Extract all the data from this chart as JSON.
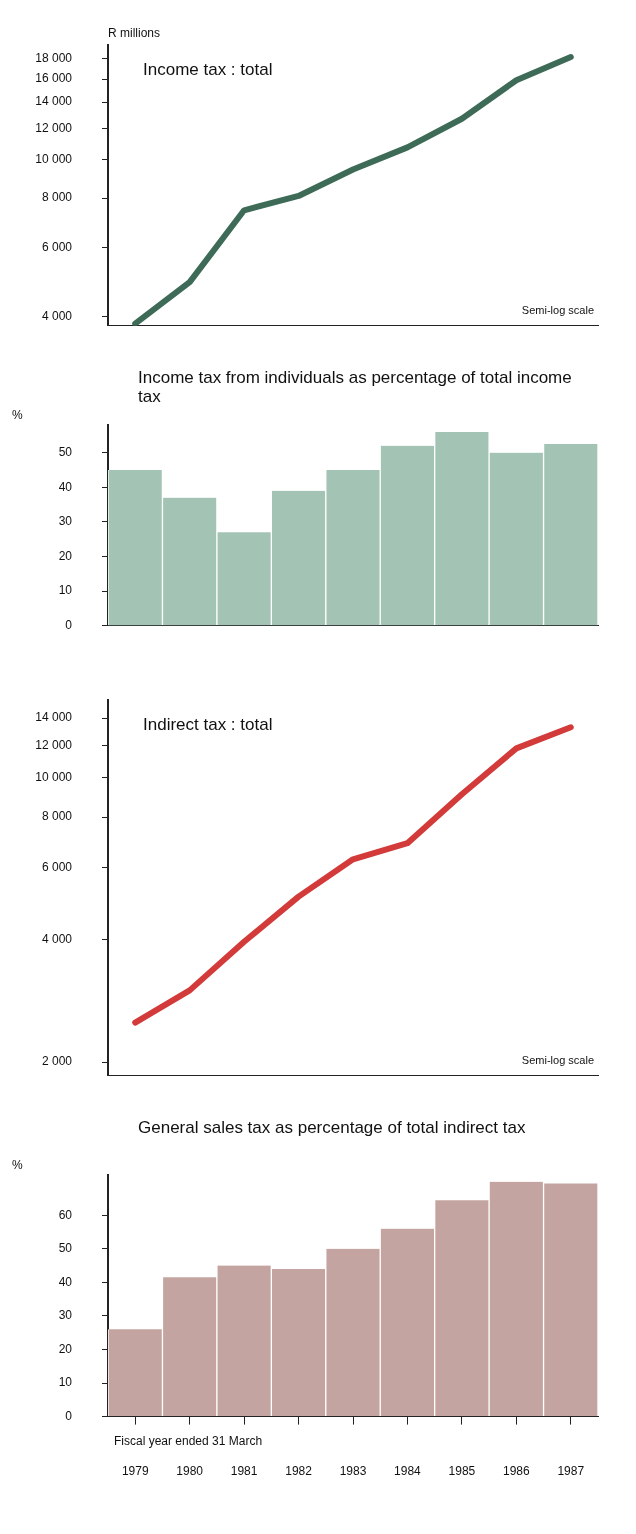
{
  "chart_data": [
    {
      "type": "line",
      "title": "Income tax : total",
      "ylabel": "R millions",
      "categories": [
        "1979",
        "1980",
        "1981",
        "1982",
        "1983",
        "1984",
        "1985",
        "1986",
        "1987"
      ],
      "series": [
        {
          "color": "#3e6b57",
          "values": [
            3850,
            4900,
            7450,
            8100,
            9450,
            10750,
            12700,
            15900,
            18200
          ]
        }
      ],
      "log": "y",
      "ylim": [
        3800,
        19500
      ],
      "yticks": [
        {
          "value": 4000,
          "label": "4 000"
        },
        {
          "value": 6000,
          "label": "6 000"
        },
        {
          "value": 8000,
          "label": "8 000"
        },
        {
          "value": 10000,
          "label": "10 000"
        },
        {
          "value": 12000,
          "label": "12 000"
        },
        {
          "value": 14000,
          "label": "14 000"
        },
        {
          "value": 16000,
          "label": "16 000"
        },
        {
          "value": 18000,
          "label": "18 000"
        }
      ],
      "grid": false,
      "legend": false,
      "tick_labels": "y",
      "annotations": [
        "Semi-log scale"
      ]
    },
    {
      "type": "bar",
      "title": "Income tax from individuals as percentage of total income tax",
      "ylabel": "%",
      "categories": [
        "1979",
        "1980",
        "1981",
        "1982",
        "1983",
        "1984",
        "1985",
        "1986",
        "1987"
      ],
      "series": [
        {
          "color": "#a3c4b5",
          "values": [
            45,
            37,
            27,
            39,
            45,
            52,
            56,
            50,
            52.5
          ]
        }
      ],
      "ylim": [
        0,
        58
      ],
      "yticks": [
        0,
        10,
        20,
        30,
        40,
        50
      ],
      "grid": false,
      "legend": false,
      "tick_labels": "y"
    },
    {
      "type": "line",
      "title": "Indirect tax : total",
      "categories": [
        "1979",
        "1980",
        "1981",
        "1982",
        "1983",
        "1984",
        "1985",
        "1986",
        "1987"
      ],
      "series": [
        {
          "color": "#d33a3a",
          "values": [
            2500,
            3000,
            3950,
            5100,
            6300,
            6900,
            9100,
            11800,
            13300
          ]
        }
      ],
      "log": "y",
      "ylim": [
        1850,
        15500
      ],
      "yticks": [
        {
          "value": 2000,
          "label": "2 000"
        },
        {
          "value": 4000,
          "label": "4 000"
        },
        {
          "value": 6000,
          "label": "6 000"
        },
        {
          "value": 8000,
          "label": "8 000"
        },
        {
          "value": 10000,
          "label": "10 000"
        },
        {
          "value": 12000,
          "label": "12 000"
        },
        {
          "value": 14000,
          "label": "14 000"
        }
      ],
      "grid": false,
      "legend": false,
      "tick_labels": "y",
      "annotations": [
        "Semi-log scale"
      ]
    },
    {
      "type": "bar",
      "title": "General sales tax as percentage of total indirect tax",
      "ylabel": "%",
      "categories": [
        "1979",
        "1980",
        "1981",
        "1982",
        "1983",
        "1984",
        "1985",
        "1986",
        "1987"
      ],
      "series": [
        {
          "color": "#c4a4a0",
          "values": [
            26,
            41.5,
            45,
            44,
            50,
            56,
            64.5,
            70,
            69.5
          ]
        }
      ],
      "ylim": [
        0,
        72
      ],
      "yticks": [
        0,
        10,
        20,
        30,
        40,
        50,
        60
      ],
      "grid": false,
      "legend": false,
      "annotations": [
        "Fiscal year ended 31 March"
      ]
    }
  ]
}
